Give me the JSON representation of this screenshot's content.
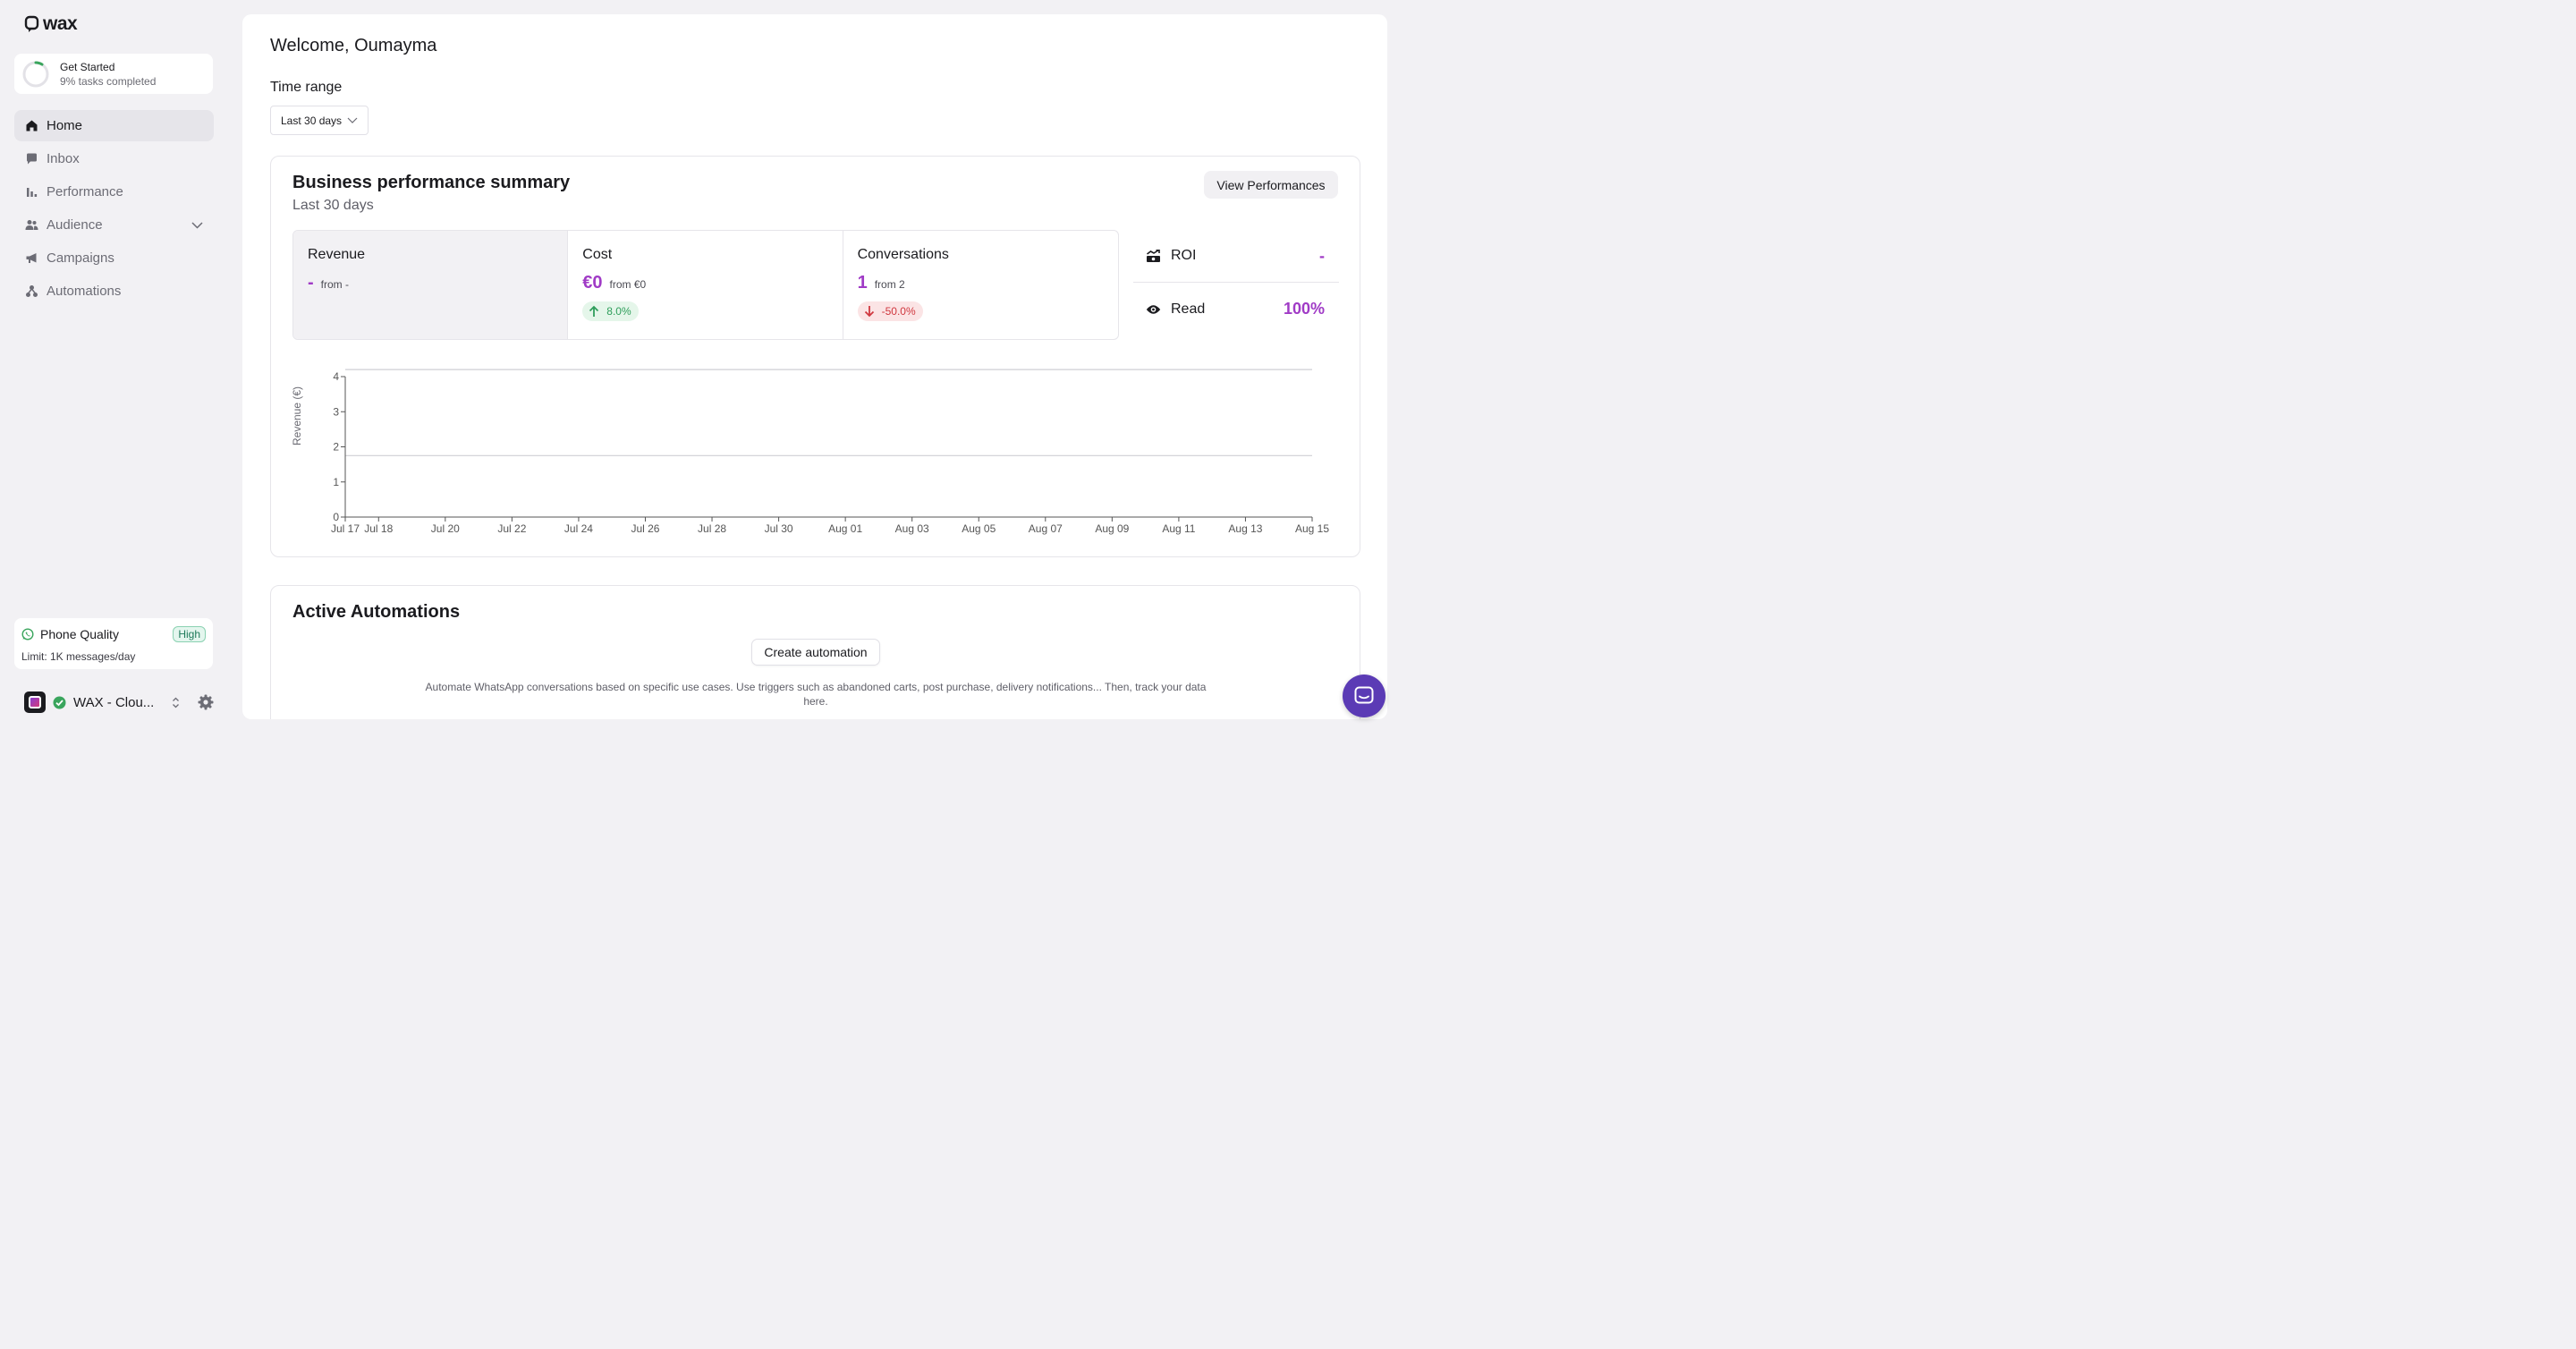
{
  "brand": {
    "logo_text": "wax"
  },
  "onboarding": {
    "title": "Get Started",
    "progress_text": "9% tasks completed",
    "progress": 0.09
  },
  "nav": {
    "items": [
      {
        "label": "Home",
        "icon": "home-icon",
        "active": true
      },
      {
        "label": "Inbox",
        "icon": "chat-bubble-icon"
      },
      {
        "label": "Performance",
        "icon": "bar-chart-icon"
      },
      {
        "label": "Audience",
        "icon": "users-icon"
      },
      {
        "label": "Campaigns",
        "icon": "megaphone-icon"
      },
      {
        "label": "Automations",
        "icon": "automation-icon"
      }
    ]
  },
  "phone_quality": {
    "title": "Phone Quality",
    "badge": "High",
    "limit": "Limit: 1K messages/day"
  },
  "account": {
    "name": "WAX - Clou..."
  },
  "main": {
    "welcome": "Welcome, Oumayma",
    "time_range": {
      "label": "Time range",
      "value": "Last 30 days"
    }
  },
  "summary": {
    "title": "Business performance summary",
    "subtitle": "Last 30 days",
    "view_button": "View Performances",
    "kpis": [
      {
        "label": "Revenue",
        "value": "-",
        "from": "from -"
      },
      {
        "label": "Cost",
        "value": "€0",
        "from": "from €0",
        "delta": "8.0%"
      },
      {
        "label": "Conversations",
        "value": "1",
        "from": "from 2",
        "delta": "-50.0%"
      }
    ],
    "side_metrics": [
      {
        "label": "ROI",
        "value": "-",
        "icon": "roi-chart-icon"
      },
      {
        "label": "Read",
        "value": "100%",
        "icon": "eye-icon"
      }
    ]
  },
  "chart_data": {
    "type": "line",
    "ylabel": "Revenue (€)",
    "xlabel": "",
    "x_ticks": [
      "Jul 17",
      "Jul 18",
      "Jul 20",
      "Jul 22",
      "Jul 24",
      "Jul 26",
      "Jul 28",
      "Jul 30",
      "Aug 01",
      "Aug 03",
      "Aug 05",
      "Aug 07",
      "Aug 09",
      "Aug 11",
      "Aug 13",
      "Aug 15"
    ],
    "x_tick_days": [
      0,
      1,
      3,
      5,
      7,
      9,
      11,
      13,
      15,
      17,
      19,
      21,
      23,
      25,
      27,
      29
    ],
    "y_ticks": [
      0,
      1,
      2,
      3,
      4
    ],
    "ylim": [
      0,
      4
    ],
    "reference_lines": [
      4.2,
      1.75
    ],
    "series": []
  },
  "automations": {
    "title": "Active Automations",
    "button": "Create automation",
    "description": "Automate WhatsApp conversations based on specific use cases. Use triggers such as abandoned carts, post purchase, delivery notifications... Then, track your data here."
  },
  "colors": {
    "accent": "#a03bc6",
    "positive": "#2f9e5b",
    "negative": "#d0383f",
    "chat": "#5b3bb5"
  }
}
